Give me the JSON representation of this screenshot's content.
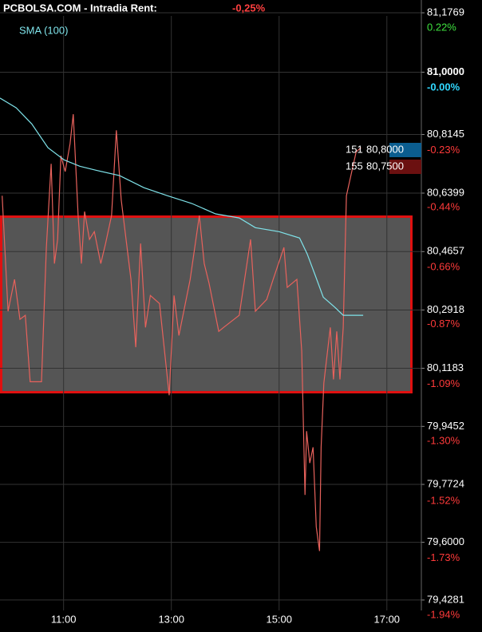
{
  "chart_data": {
    "type": "line",
    "title": "PCBOLSA.COM - Intradia  Rent:",
    "change": "-0,25%",
    "x": [],
    "xlim": [
      9.82,
      17.64
    ],
    "xticks": [
      {
        "value": 11,
        "label": "11:00"
      },
      {
        "value": 13,
        "label": "13:00"
      },
      {
        "value": 15,
        "label": "15:00"
      },
      {
        "value": 17,
        "label": "17:00"
      }
    ],
    "ylim": [
      79.397,
      81.215
    ],
    "yticks": [
      {
        "value": 81.1769,
        "label": "81,1769"
      },
      {
        "value": 81.0,
        "label": "81,0000"
      },
      {
        "value": 80.8145,
        "label": "80,8145"
      },
      {
        "value": 80.6399,
        "label": "80,6399"
      },
      {
        "value": 80.4657,
        "label": "80,4657"
      },
      {
        "value": 80.2918,
        "label": "80,2918"
      },
      {
        "value": 80.1183,
        "label": "80,1183"
      },
      {
        "value": 79.9452,
        "label": "79,9452"
      },
      {
        "value": 79.7724,
        "label": "79,7724"
      },
      {
        "value": 79.6,
        "label": "79,6000"
      },
      {
        "value": 79.4281,
        "label": "79,4281"
      }
    ],
    "y2lim": [
      -1.978,
      0.267
    ],
    "y2ticks": [
      {
        "value": 0.22,
        "label": "0.22%"
      },
      {
        "value": 0,
        "label": "-0.00%"
      },
      {
        "value": -0.23,
        "label": "-0.23%"
      },
      {
        "value": -0.44,
        "label": "-0.44%"
      },
      {
        "value": -0.66,
        "label": "-0.66%"
      },
      {
        "value": -0.87,
        "label": "-0.87%"
      },
      {
        "value": -1.09,
        "label": "-1.09%"
      },
      {
        "value": -1.3,
        "label": "-1.30%"
      },
      {
        "value": -1.52,
        "label": "-1.52%"
      },
      {
        "value": -1.73,
        "label": "-1.73%"
      },
      {
        "value": -1.94,
        "label": "-1.94%"
      }
    ],
    "grid": true,
    "series": [
      {
        "color": "#e8625c",
        "x": [
          9.86,
          9.97,
          10.09,
          10.19,
          10.29,
          10.38,
          10.59,
          10.68,
          10.77,
          10.83,
          10.89,
          10.95,
          11.03,
          11.12,
          11.18,
          11.27,
          11.33,
          11.39,
          11.48,
          11.57,
          11.69,
          11.78,
          11.89,
          11.98,
          12.07,
          12.25,
          12.34,
          12.43,
          12.52,
          12.61,
          12.78,
          12.96,
          13.05,
          13.14,
          13.35,
          13.52,
          13.61,
          13.7,
          13.88,
          13.97,
          14.26,
          14.47,
          14.56,
          14.77,
          14.89,
          15.09,
          15.15,
          15.33,
          15.42,
          15.48,
          15.51,
          15.57,
          15.63,
          15.69,
          15.75,
          15.78,
          15.83,
          15.95,
          16.01,
          16.07,
          16.13,
          16.19,
          16.25,
          16.43,
          16.52
        ],
        "values": [
          80.632,
          80.288,
          80.383,
          80.264,
          80.276,
          80.078,
          80.078,
          80.478,
          80.727,
          80.43,
          80.502,
          80.751,
          80.704,
          80.787,
          80.875,
          80.573,
          80.43,
          80.585,
          80.502,
          80.525,
          80.43,
          80.49,
          80.573,
          80.827,
          80.62,
          80.383,
          80.181,
          80.49,
          80.24,
          80.335,
          80.311,
          80.038,
          80.335,
          80.216,
          80.383,
          80.573,
          80.43,
          80.371,
          80.228,
          80.24,
          80.276,
          80.502,
          80.288,
          80.323,
          80.383,
          80.478,
          80.359,
          80.383,
          80.169,
          79.741,
          79.931,
          79.836,
          79.883,
          79.646,
          79.574,
          79.883,
          80.074,
          80.24,
          80.085,
          80.228,
          80.085,
          80.24,
          80.632,
          80.763,
          80.775
        ]
      },
      {
        "name": "SMA (100)",
        "color": "#7fe3ea",
        "x": [
          9.82,
          10.12,
          10.41,
          10.71,
          11.01,
          11.3,
          11.6,
          12.04,
          12.49,
          12.93,
          13.38,
          13.82,
          14.26,
          14.56,
          15.0,
          15.38,
          15.52,
          15.67,
          15.82,
          16.04,
          16.19,
          16.56
        ],
        "values": [
          80.923,
          80.894,
          80.846,
          80.775,
          80.739,
          80.72,
          80.708,
          80.692,
          80.656,
          80.632,
          80.609,
          80.578,
          80.566,
          80.537,
          80.525,
          80.506,
          80.459,
          80.395,
          80.33,
          80.299,
          80.276,
          80.276
        ]
      }
    ],
    "quotes": [
      {
        "size": "151",
        "price": "80,8000",
        "color": "#0b5d8f"
      },
      {
        "size": "155",
        "price": "80,7500",
        "color": "#6b1010"
      }
    ]
  }
}
